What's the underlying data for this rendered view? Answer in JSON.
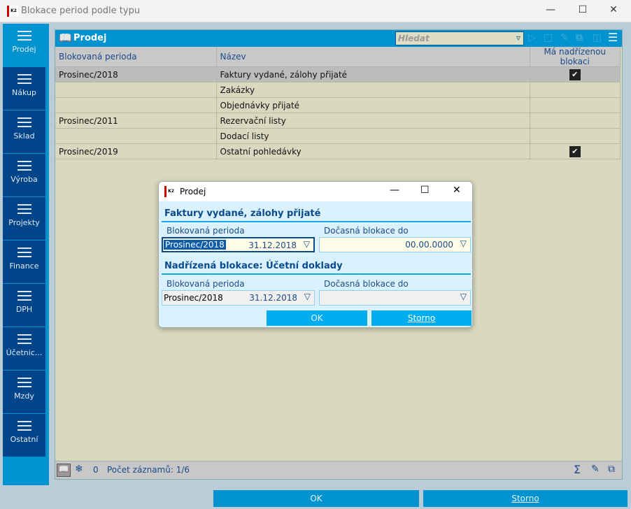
{
  "window": {
    "title": "Blokace period podle typu",
    "logo": "K2"
  },
  "sidebar": {
    "items": [
      {
        "label": "Prodej"
      },
      {
        "label": "Nákup"
      },
      {
        "label": "Sklad"
      },
      {
        "label": "Výroba"
      },
      {
        "label": "Projekty"
      },
      {
        "label": "Finance"
      },
      {
        "label": "DPH"
      },
      {
        "label": "Účetnic..."
      },
      {
        "label": "Mzdy"
      },
      {
        "label": "Ostatní"
      }
    ]
  },
  "panel": {
    "title": "Prodej",
    "search_placeholder": "Hledat",
    "columns": [
      "Blokovaná perioda",
      "Název",
      "Má nadřízenou blokaci"
    ],
    "rows": [
      {
        "period": "Prosinec/2018",
        "name": "Faktury vydané, zálohy přijaté",
        "parent": true
      },
      {
        "period": "",
        "name": "Zakázky",
        "parent": false
      },
      {
        "period": "",
        "name": "Objednávky přijaté",
        "parent": false
      },
      {
        "period": "Prosinec/2011",
        "name": "Rezervační listy",
        "parent": false
      },
      {
        "period": "",
        "name": "Dodací listy",
        "parent": false
      },
      {
        "period": "Prosinec/2019",
        "name": "Ostatní pohledávky",
        "parent": true
      }
    ],
    "footer": {
      "filter_count": "0",
      "records": "Počet záznamů: 1/6"
    }
  },
  "dialog": {
    "title": "Prodej",
    "section1": "Faktury vydané, zálohy přijaté",
    "section2": "Nadřízená blokace: Účetní doklady",
    "label_period": "Blokovaná perioda",
    "label_temp": "Dočasná blokace do",
    "period1": "Prosinec/2018",
    "date1": "31.12.2018",
    "temp1": "00.00.0000",
    "period2": "Prosinec/2018",
    "date2": "31.12.2018",
    "temp2": "",
    "ok": "OK",
    "cancel": "Storno"
  },
  "buttons": {
    "ok": "OK",
    "cancel": "Storno"
  },
  "colors": {
    "accent": "#0093cf",
    "sidebar": "#00448a",
    "grid": "#d9d9c0"
  }
}
